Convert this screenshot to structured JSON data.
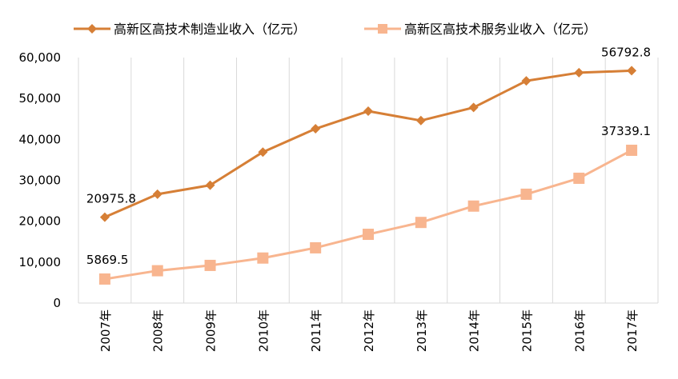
{
  "chart_data": {
    "type": "line",
    "categories": [
      "2007年",
      "2008年",
      "2009年",
      "2010年",
      "2011年",
      "2012年",
      "2013年",
      "2014年",
      "2015年",
      "2016年",
      "2017年"
    ],
    "series": [
      {
        "name": "高新区高技术制造业收入（亿元）",
        "color": "#d67f36",
        "marker": "diamond",
        "values": [
          20975.8,
          26600,
          28800,
          36900,
          42600,
          46900,
          44600,
          47800,
          54300,
          56300,
          56792.8
        ]
      },
      {
        "name": "高新区高技术服务业收入（亿元）",
        "color": "#f8b58f",
        "marker": "square",
        "values": [
          5869.5,
          7900,
          9200,
          11000,
          13500,
          16800,
          19700,
          23700,
          26600,
          30500,
          37339.1
        ]
      }
    ],
    "data_labels": [
      {
        "series": 0,
        "index": 0,
        "text": "20975.8"
      },
      {
        "series": 0,
        "index": 10,
        "text": "56792.8"
      },
      {
        "series": 1,
        "index": 0,
        "text": "5869.5"
      },
      {
        "series": 1,
        "index": 10,
        "text": "37339.1"
      }
    ],
    "y_ticks": [
      "0",
      "10,000",
      "20,000",
      "30,000",
      "40,000",
      "50,000",
      "60,000"
    ],
    "ylim": [
      0,
      60000
    ],
    "grid": "vertical",
    "legend": "top"
  }
}
